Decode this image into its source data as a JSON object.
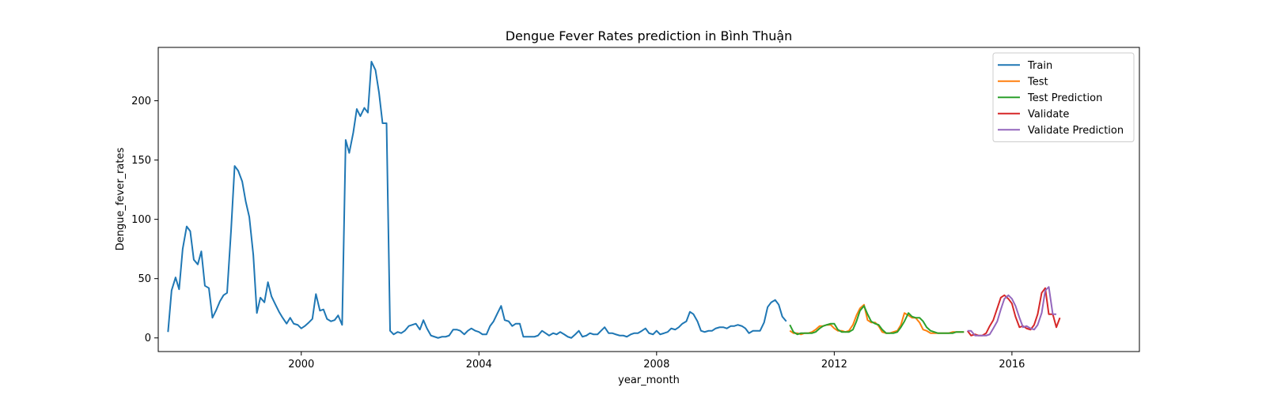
{
  "chart_data": {
    "type": "line",
    "title": "Dengue Fever Rates prediction in Bình Thuận",
    "xlabel": "year_month",
    "ylabel": "Dengue_fever_rates",
    "xlim": [
      1996.78,
      2018.87
    ],
    "ylim": [
      -11.5,
      245
    ],
    "x_ticks": [
      2000,
      2004,
      2008,
      2012,
      2016
    ],
    "x_tick_labels": [
      "2000",
      "2004",
      "2008",
      "2012",
      "2016"
    ],
    "y_ticks": [
      0,
      50,
      100,
      150,
      200
    ],
    "y_tick_labels": [
      "0",
      "50",
      "100",
      "150",
      "200"
    ],
    "grid": false,
    "legend_position": "top-right",
    "series": [
      {
        "name": "Train",
        "color": "#1f77b4",
        "x": [
          1997.0,
          1997.08,
          1997.17,
          1997.25,
          1997.33,
          1997.42,
          1997.5,
          1997.58,
          1997.67,
          1997.75,
          1997.83,
          1997.92,
          1998.0,
          1998.08,
          1998.17,
          1998.25,
          1998.33,
          1998.42,
          1998.5,
          1998.58,
          1998.67,
          1998.75,
          1998.83,
          1998.92,
          1999.0,
          1999.08,
          1999.17,
          1999.25,
          1999.33,
          1999.42,
          1999.5,
          1999.58,
          1999.67,
          1999.75,
          1999.83,
          1999.92,
          2000.0,
          2000.08,
          2000.17,
          2000.25,
          2000.33,
          2000.42,
          2000.5,
          2000.58,
          2000.67,
          2000.75,
          2000.83,
          2000.92,
          2001.0,
          2001.08,
          2001.17,
          2001.25,
          2001.33,
          2001.42,
          2001.5,
          2001.58,
          2001.67,
          2001.75,
          2001.83,
          2001.92,
          2002.0,
          2002.08,
          2002.17,
          2002.25,
          2002.33,
          2002.42,
          2002.5,
          2002.58,
          2002.67,
          2002.75,
          2002.83,
          2002.92,
          2003.0,
          2003.08,
          2003.17,
          2003.25,
          2003.33,
          2003.42,
          2003.5,
          2003.58,
          2003.67,
          2003.75,
          2003.83,
          2003.92,
          2004.0,
          2004.08,
          2004.17,
          2004.25,
          2004.33,
          2004.42,
          2004.5,
          2004.58,
          2004.67,
          2004.75,
          2004.83,
          2004.92,
          2005.0,
          2005.08,
          2005.17,
          2005.25,
          2005.33,
          2005.42,
          2005.5,
          2005.58,
          2005.67,
          2005.75,
          2005.83,
          2005.92,
          2006.0,
          2006.08,
          2006.17,
          2006.25,
          2006.33,
          2006.42,
          2006.5,
          2006.58,
          2006.67,
          2006.75,
          2006.83,
          2006.92,
          2007.0,
          2007.08,
          2007.17,
          2007.25,
          2007.33,
          2007.42,
          2007.5,
          2007.58,
          2007.67,
          2007.75,
          2007.83,
          2007.92,
          2008.0,
          2008.08,
          2008.17,
          2008.25,
          2008.33,
          2008.42,
          2008.5,
          2008.58,
          2008.67,
          2008.75,
          2008.83,
          2008.92,
          2009.0,
          2009.08,
          2009.17,
          2009.25,
          2009.33,
          2009.42,
          2009.5,
          2009.58,
          2009.67,
          2009.75,
          2009.83,
          2009.92,
          2010.0,
          2010.08,
          2010.17,
          2010.25,
          2010.33,
          2010.42,
          2010.5,
          2010.58,
          2010.67,
          2010.75,
          2010.83,
          2010.92
        ],
        "y": [
          5,
          40,
          51,
          41,
          75,
          94,
          90,
          66,
          62,
          73,
          44,
          42,
          17,
          23,
          31,
          36,
          38,
          91,
          145,
          141,
          132,
          115,
          102,
          70,
          21,
          34,
          30,
          47,
          35,
          28,
          22,
          17,
          12,
          17,
          12,
          11,
          8,
          10,
          13,
          16,
          37,
          23,
          24,
          16,
          14,
          15,
          19,
          11,
          167,
          156,
          173,
          193,
          187,
          194,
          190,
          233,
          226,
          207,
          181,
          181,
          6,
          3,
          5,
          4,
          6,
          10,
          11,
          12,
          7,
          15,
          8,
          2,
          1,
          0,
          1,
          1,
          2,
          7,
          7,
          6,
          3,
          6,
          8,
          6,
          5,
          3,
          3,
          10,
          14,
          21,
          27,
          15,
          14,
          10,
          12,
          12,
          1,
          1,
          1,
          1,
          2,
          6,
          4,
          2,
          4,
          3,
          5,
          3,
          1,
          0,
          3,
          6,
          1,
          2,
          4,
          3,
          3,
          6,
          9,
          4,
          4,
          3,
          2,
          2,
          1,
          3,
          4,
          4,
          6,
          8,
          4,
          3,
          6,
          3,
          4,
          5,
          8,
          7,
          9,
          12,
          14,
          22,
          20,
          14,
          6,
          5,
          6,
          6,
          8,
          9,
          9,
          8,
          10,
          10,
          11,
          10,
          8,
          4,
          6,
          6,
          6,
          13,
          26,
          30,
          32,
          28,
          18,
          14
        ]
      },
      {
        "name": "Test",
        "color": "#ff7f0e",
        "x": [
          2011.0,
          2011.08,
          2011.17,
          2011.25,
          2011.33,
          2011.42,
          2011.5,
          2011.58,
          2011.67,
          2011.75,
          2011.83,
          2011.92,
          2012.0,
          2012.08,
          2012.17,
          2012.25,
          2012.33,
          2012.42,
          2012.5,
          2012.58,
          2012.67,
          2012.75,
          2012.83,
          2012.92,
          2013.0,
          2013.08,
          2013.17,
          2013.25,
          2013.33,
          2013.42,
          2013.5,
          2013.58,
          2013.67,
          2013.75,
          2013.83,
          2013.92,
          2014.0,
          2014.08,
          2014.17,
          2014.25,
          2014.33,
          2014.42,
          2014.5,
          2014.58,
          2014.67,
          2014.75,
          2014.83,
          2014.92
        ],
        "y": [
          6,
          4,
          4,
          3,
          4,
          4,
          5,
          7,
          10,
          10,
          11,
          11,
          8,
          6,
          6,
          5,
          6,
          11,
          19,
          25,
          28,
          15,
          13,
          13,
          10,
          5,
          4,
          4,
          5,
          6,
          11,
          21,
          19,
          17,
          17,
          13,
          7,
          6,
          4,
          4,
          4,
          4,
          4,
          4,
          5,
          5,
          5,
          5
        ]
      },
      {
        "name": "Test Prediction",
        "color": "#2ca02c",
        "x": [
          2011.0,
          2011.08,
          2011.17,
          2011.25,
          2011.33,
          2011.42,
          2011.5,
          2011.58,
          2011.67,
          2011.75,
          2011.83,
          2011.92,
          2012.0,
          2012.08,
          2012.17,
          2012.25,
          2012.33,
          2012.42,
          2012.5,
          2012.58,
          2012.67,
          2012.75,
          2012.83,
          2012.92,
          2013.0,
          2013.08,
          2013.17,
          2013.25,
          2013.33,
          2013.42,
          2013.5,
          2013.58,
          2013.67,
          2013.75,
          2013.83,
          2013.92,
          2014.0,
          2014.08,
          2014.17,
          2014.25,
          2014.33,
          2014.42,
          2014.5,
          2014.58,
          2014.67,
          2014.75,
          2014.83,
          2014.92
        ],
        "y": [
          11,
          5,
          3,
          4,
          4,
          4,
          4,
          5,
          8,
          10,
          11,
          12,
          12,
          7,
          5,
          5,
          5,
          7,
          14,
          23,
          27,
          20,
          14,
          12,
          11,
          7,
          4,
          4,
          4,
          5,
          9,
          14,
          21,
          18,
          17,
          17,
          14,
          9,
          6,
          5,
          4,
          4,
          4,
          4,
          4,
          5,
          5,
          5
        ]
      },
      {
        "name": "Validate",
        "color": "#d62728",
        "x": [
          2015.0,
          2015.08,
          2015.17,
          2015.25,
          2015.33,
          2015.42,
          2015.5,
          2015.58,
          2015.67,
          2015.75,
          2015.83,
          2015.92,
          2016.0,
          2016.08,
          2016.17,
          2016.25,
          2016.33,
          2016.42,
          2016.5,
          2016.58,
          2016.67,
          2016.75,
          2016.83,
          2016.92,
          2017.0,
          2017.08
        ],
        "y": [
          6,
          2,
          3,
          2,
          2,
          4,
          10,
          15,
          25,
          34,
          36,
          33,
          29,
          18,
          9,
          10,
          8,
          7,
          11,
          20,
          38,
          42,
          20,
          20,
          9,
          17
        ]
      },
      {
        "name": "Validate Prediction",
        "color": "#9467bd",
        "x": [
          2015.0,
          2015.08,
          2015.17,
          2015.25,
          2015.33,
          2015.42,
          2015.5,
          2015.58,
          2015.67,
          2015.75,
          2015.83,
          2015.92,
          2016.0,
          2016.08,
          2016.17,
          2016.25,
          2016.33,
          2016.42,
          2016.5,
          2016.58,
          2016.67,
          2016.75,
          2016.83,
          2016.92,
          2017.0
        ],
        "y": [
          6,
          6,
          2,
          2,
          2,
          2,
          3,
          8,
          14,
          24,
          33,
          36,
          33,
          27,
          17,
          9,
          10,
          8,
          7,
          11,
          21,
          40,
          43,
          20,
          20
        ]
      }
    ]
  }
}
